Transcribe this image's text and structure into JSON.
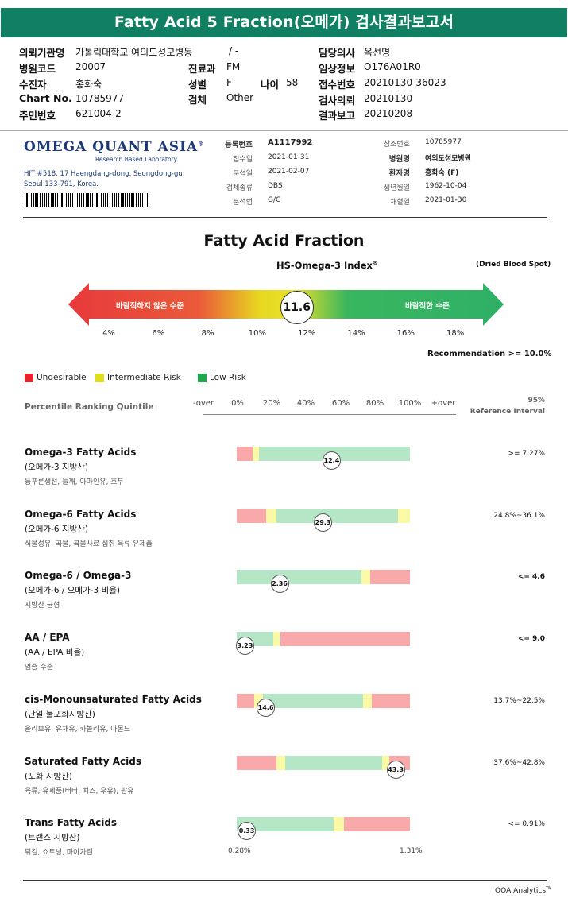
{
  "header": {
    "title": "Fatty Acid 5 Fraction(오메가) 검사결과보고서"
  },
  "patient": {
    "institution_label": "의뢰기관명",
    "institution": "가톨릭대학교 여의도성모병동",
    "institution_mark": "/ -",
    "hospital_code_label": "병원코드",
    "hospital_code": "20007",
    "patient_label": "수진자",
    "patient": "홍화숙",
    "chart_label": "Chart No.",
    "chart": "10785977",
    "rrn_label": "주민번호",
    "rrn": "621004-2",
    "dept_label": "진료과",
    "dept": "FM",
    "sex_label": "성별",
    "sex": "F",
    "age_label": "나이",
    "age": "58",
    "specimen_label": "검체",
    "specimen": "Other",
    "doctor_label": "담당의사",
    "doctor": "옥선명",
    "clinical_label": "임상정보",
    "clinical": "O176A01R0",
    "receipt_label": "접수번호",
    "receipt": "20210130-36023",
    "request_label": "검사의뢰",
    "request": "20210130",
    "report_label": "결과보고",
    "report": "20210208"
  },
  "lab": {
    "logo": "OMEGA QUANT ASIA",
    "logo_reg": "®",
    "logo_sub": "Research Based Laboratory",
    "addr1": "HIT #518, 17 Haengdang-dong, Seongdong-gu,",
    "addr2": "Seoul 133-791, Korea."
  },
  "registration": {
    "reg_no_label": "등록번호",
    "reg_no": "A1117992",
    "received_label": "접수일",
    "received": "2021-01-31",
    "analyzed_label": "분석일",
    "analyzed": "2021-02-07",
    "specimen_type_label": "검체종류",
    "specimen_type": "DBS",
    "method_label": "분석법",
    "method": "G/C",
    "ref_no_label": "참조번호",
    "ref_no": "10785977",
    "hospital_label": "병원명",
    "hospital": "여의도성모병원",
    "patient_label": "환자명",
    "patient": "홍화숙 (F)",
    "dob_label": "생년월일",
    "dob": "1962-10-04",
    "collected_label": "채혈일",
    "collected": "2021-01-30"
  },
  "index": {
    "section_title": "Fatty Acid Fraction",
    "title": "HS-Omega-3 Index",
    "title_reg": "®",
    "sample_type": "(Dried Blood Spot)",
    "value": 11.6,
    "value_label": "11.6",
    "ticks": [
      "4%",
      "6%",
      "8%",
      "10%",
      "12%",
      "14%",
      "16%",
      "18%"
    ],
    "left_label": "바람직하지 않은 수준",
    "right_label": "바람직한 수준",
    "recommendation": "Recommendation  >= 10.0%",
    "colors": {
      "red": "#e8393b",
      "yellow": "#e8d81f",
      "green": "#2fb067"
    }
  },
  "legend": [
    {
      "label": "Undesirable",
      "color": "#e8232a"
    },
    {
      "label": "Intermediate Risk",
      "color": "#dede1a"
    },
    {
      "label": "Low Risk",
      "color": "#1fa84e"
    }
  ],
  "scale": {
    "title": "Percentile Ranking Quintile",
    "headers": [
      "-over",
      "0%",
      "20%",
      "40%",
      "60%",
      "80%",
      "100%",
      "+over"
    ],
    "ref_title1": "95%",
    "ref_title2": "Reference Interval",
    "low_label": "0.28%",
    "high_label": "1.31%"
  },
  "colors": {
    "red": "#f9a9a9",
    "yellow": "#fafaa6",
    "green": "#b5e6c6"
  },
  "metrics": [
    {
      "name": "Omega-3 Fatty Acids",
      "korean": "(오메가-3 지방산)",
      "desc": "등푸른생선, 들깨, 아마인유, 호두",
      "value": "12.4",
      "marker_pct": 0.55,
      "ref": ">= 7.27%",
      "ref_bold": false,
      "segments": [
        [
          "red",
          0,
          0.09
        ],
        [
          "yellow",
          0.09,
          0.13
        ],
        [
          "green",
          0.13,
          1.0
        ]
      ]
    },
    {
      "name": "Omega-6 Fatty Acids",
      "korean": "(오메가-6 지방산)",
      "desc": "식물성유, 곡물, 곡물사료 섭취 육류 유제품",
      "value": "29.3",
      "marker_pct": 0.5,
      "ref": "24.8%~36.1%",
      "ref_bold": false,
      "segments": [
        [
          "red",
          0,
          0.17
        ],
        [
          "yellow",
          0.17,
          0.23
        ],
        [
          "green",
          0.23,
          0.93
        ],
        [
          "yellow",
          0.93,
          1.0
        ]
      ]
    },
    {
      "name": "Omega-6 / Omega-3",
      "korean": "(오메가-6 / 오메가-3 비율)",
      "desc": "지방산 균형",
      "value": "2.36",
      "marker_pct": 0.25,
      "ref": "<= 4.6",
      "ref_bold": true,
      "segments": [
        [
          "green",
          0,
          0.72
        ],
        [
          "yellow",
          0.72,
          0.77
        ],
        [
          "red",
          0.77,
          1.0
        ]
      ]
    },
    {
      "name": "AA / EPA",
      "korean": "(AA / EPA 비율)",
      "desc": "염증 수준",
      "value": "3.23",
      "marker_pct": 0.05,
      "ref": "<= 9.0",
      "ref_bold": true,
      "segments": [
        [
          "green",
          0,
          0.21
        ],
        [
          "yellow",
          0.21,
          0.25
        ],
        [
          "red",
          0.25,
          1.0
        ]
      ]
    },
    {
      "name": "cis-Monounsaturated Fatty Acids",
      "korean": "(단일 불포화지방산)",
      "desc": "올리브유, 유채유, 카놀라유, 아몬드",
      "value": "14.6",
      "marker_pct": 0.17,
      "ref": "13.7%~22.5%",
      "ref_bold": false,
      "segments": [
        [
          "red",
          0,
          0.1
        ],
        [
          "yellow",
          0.1,
          0.15
        ],
        [
          "green",
          0.15,
          0.73
        ],
        [
          "yellow",
          0.73,
          0.78
        ],
        [
          "red",
          0.78,
          1.0
        ]
      ]
    },
    {
      "name": "Saturated Fatty Acids",
      "korean": "(포화 지방산)",
      "desc": "육류, 유제품(버터, 치즈, 우유), 팜유",
      "value": "43.3",
      "marker_pct": 0.92,
      "ref": "37.6%~42.8%",
      "ref_bold": false,
      "segments": [
        [
          "red",
          0,
          0.23
        ],
        [
          "yellow",
          0.23,
          0.28
        ],
        [
          "green",
          0.28,
          0.84
        ],
        [
          "yellow",
          0.84,
          0.88
        ],
        [
          "red",
          0.88,
          1.0
        ]
      ]
    },
    {
      "name": "Trans Fatty Acids",
      "korean": "(트랜스 지방산)",
      "desc": "튀김, 쇼트닝, 마아가린",
      "value": "0.33",
      "marker_pct": 0.06,
      "ref": "<= 0.91%",
      "ref_bold": false,
      "segments": [
        [
          "green",
          0,
          0.56
        ],
        [
          "yellow",
          0.56,
          0.62
        ],
        [
          "red",
          0.62,
          1.0
        ]
      ]
    }
  ],
  "footer": {
    "brand": "OQA Analytics",
    "tm": "TM"
  }
}
